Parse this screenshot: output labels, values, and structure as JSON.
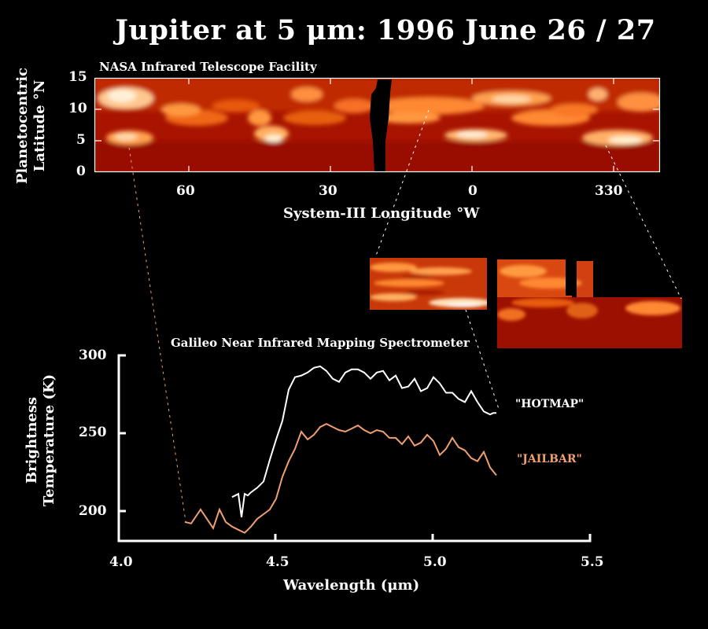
{
  "title": "Jupiter at 5 μm:  1996 June 26 / 27",
  "upper_panel": {
    "subtitle": "NASA Infrared Telescope Facility",
    "ylabel_line1": "Planetocentric",
    "ylabel_line2": "Latitude °N",
    "yticks": [
      "15",
      "10",
      "5",
      "0"
    ],
    "xticks": [
      "60",
      "30",
      "0",
      "330"
    ],
    "xlabel": "System-III Longitude °W",
    "image": "5-micron thermal emission map (orange/red colormap)"
  },
  "inset_panel": {
    "image": "Galileo NIMS high-resolution mosaic (two image segments)"
  },
  "lower_panel": {
    "subtitle": "Galileo Near Infrared Mapping Spectrometer",
    "ylabel_line1": "Brightness",
    "ylabel_line2": "Temperature  (K)",
    "yticks": [
      "300",
      "250",
      "200"
    ],
    "xticks": [
      "4.0",
      "4.5",
      "5.0",
      "5.5"
    ],
    "xlabel": "Wavelength  (μm)",
    "legend": [
      {
        "label": "\"HOTMAP\"",
        "color": "#ffffff"
      },
      {
        "label": "\"JAILBAR\"",
        "color": "#f0a070"
      }
    ]
  },
  "colors": {
    "background": "#000000",
    "hotmap": "#ffffff",
    "jailbar": "#f0a070",
    "map_dark": "#a01000",
    "map_mid": "#e85010",
    "map_bright": "#ffe0b0"
  },
  "chart_data": {
    "type": "line",
    "title": "Jupiter at 5 μm:  1996 June 26 / 27",
    "subtitle": "Galileo Near Infrared Mapping Spectrometer",
    "xlabel": "Wavelength (μm)",
    "ylabel": "Brightness Temperature (K)",
    "xlim": [
      4.0,
      5.5
    ],
    "ylim": [
      181,
      300
    ],
    "xticks": [
      4.0,
      4.5,
      5.0,
      5.5
    ],
    "yticks": [
      200,
      250,
      300
    ],
    "grid": false,
    "legend_position": "right (inline labels)",
    "series": [
      {
        "name": "\"HOTMAP\"",
        "color": "#ffffff",
        "x": [
          4.36,
          4.38,
          4.39,
          4.4,
          4.41,
          4.42,
          4.44,
          4.46,
          4.48,
          4.5,
          4.52,
          4.54,
          4.56,
          4.58,
          4.6,
          4.62,
          4.64,
          4.66,
          4.68,
          4.7,
          4.72,
          4.74,
          4.76,
          4.78,
          4.8,
          4.82,
          4.84,
          4.86,
          4.88,
          4.9,
          4.92,
          4.94,
          4.96,
          4.98,
          5.0,
          5.02,
          5.04,
          5.06,
          5.08,
          5.1,
          5.12,
          5.14,
          5.16,
          5.18,
          5.19,
          5.2
        ],
        "values": [
          209,
          211,
          196,
          211,
          210,
          212,
          215,
          219,
          233,
          246,
          258,
          278,
          286,
          287,
          289,
          292,
          293,
          290,
          285,
          283,
          289,
          291,
          291,
          289,
          285,
          289,
          290,
          284,
          287,
          279,
          280,
          285,
          277,
          279,
          286,
          282,
          276,
          276,
          272,
          270,
          277,
          270,
          264,
          262,
          263,
          263
        ],
        "note": "values read from pixels; approximate"
      },
      {
        "name": "\"JAILBAR\"",
        "color": "#f0a070",
        "x": [
          4.21,
          4.23,
          4.26,
          4.28,
          4.3,
          4.32,
          4.34,
          4.36,
          4.38,
          4.4,
          4.42,
          4.44,
          4.46,
          4.48,
          4.5,
          4.52,
          4.54,
          4.56,
          4.58,
          4.6,
          4.62,
          4.64,
          4.66,
          4.68,
          4.7,
          4.72,
          4.74,
          4.76,
          4.78,
          4.8,
          4.82,
          4.84,
          4.86,
          4.88,
          4.9,
          4.92,
          4.94,
          4.96,
          4.98,
          5.0,
          5.02,
          5.04,
          5.06,
          5.08,
          5.1,
          5.12,
          5.14,
          5.16,
          5.18,
          5.2
        ],
        "values": [
          193,
          192,
          201,
          195,
          189,
          201,
          193,
          190,
          188,
          186,
          190,
          195,
          198,
          201,
          208,
          222,
          232,
          240,
          251,
          246,
          249,
          254,
          256,
          254,
          252,
          251,
          253,
          255,
          252,
          250,
          252,
          251,
          247,
          247,
          243,
          248,
          242,
          244,
          249,
          245,
          236,
          240,
          247,
          241,
          239,
          234,
          232,
          238,
          228,
          223
        ],
        "note": "values read from pixels; approximate"
      }
    ],
    "upper_map": {
      "type": "heatmap",
      "title": "NASA Infrared Telescope Facility",
      "xlabel": "System-III Longitude °W",
      "ylabel": "Planetocentric Latitude °N",
      "xticks": [
        60,
        30,
        0,
        330
      ],
      "yticks": [
        0,
        5,
        10,
        15
      ],
      "ylim": [
        0,
        15
      ]
    }
  }
}
